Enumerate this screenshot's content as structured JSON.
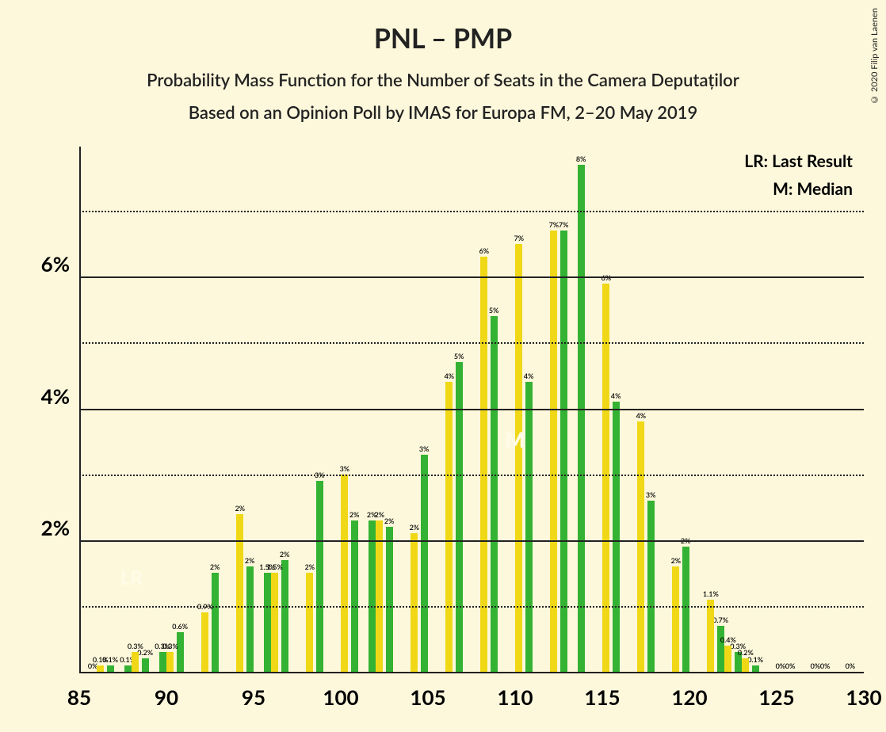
{
  "background_color": "#fdf8db",
  "title": "PNL – PMP",
  "title_fontsize": 34,
  "title_color": "#222222",
  "subtitle1": "Probability Mass Function for the Number of Seats in the Camera Deputaților",
  "subtitle2": "Based on an Opinion Poll by IMAS for Europa FM, 2–20 May 2019",
  "subtitle_fontsize": 22,
  "subtitle_color": "#222222",
  "copyright": "© 2020 Filip van Laenen",
  "legend": {
    "lr": "LR: Last Result",
    "m": "M: Median",
    "fontsize": 21
  },
  "x_axis": {
    "min": 85,
    "max": 130,
    "ticks": [
      85,
      90,
      95,
      100,
      105,
      110,
      115,
      120,
      125,
      130
    ],
    "tick_fontsize": 26
  },
  "y_axis": {
    "min": 0,
    "max": 8,
    "major_ticks": [
      2,
      4,
      6
    ],
    "minor_ticks": [
      1,
      3,
      5,
      7
    ],
    "tick_labels": [
      "2%",
      "4%",
      "6%"
    ],
    "tick_fontsize": 26,
    "major_grid_color": "#222222",
    "minor_grid_color": "#222222",
    "major_grid_width": 2,
    "minor_grid_width": 2
  },
  "series": [
    {
      "name": "green",
      "color": "#34b233",
      "offset": -0.22,
      "bar_width": 0.42,
      "data": [
        {
          "x": 86,
          "y": 0,
          "label": "0%"
        },
        {
          "x": 87,
          "y": 0.1,
          "label": "0.1%"
        },
        {
          "x": 88,
          "y": 0.1,
          "label": "0.1%"
        },
        {
          "x": 89,
          "y": 0.2,
          "label": "0.2%"
        },
        {
          "x": 90,
          "y": 0.3,
          "label": "0.3%"
        },
        {
          "x": 91,
          "y": 0.6,
          "label": "0.6%"
        },
        {
          "x": 93,
          "y": 1.5,
          "label": "2%"
        },
        {
          "x": 95,
          "y": 1.6,
          "label": "2%"
        },
        {
          "x": 96,
          "y": 1.5,
          "label": "1.5%"
        },
        {
          "x": 97,
          "y": 1.7,
          "label": "2%"
        },
        {
          "x": 99,
          "y": 2.9,
          "label": "3%"
        },
        {
          "x": 101,
          "y": 2.3,
          "label": "2%"
        },
        {
          "x": 102,
          "y": 2.3,
          "label": "2%"
        },
        {
          "x": 103,
          "y": 2.2,
          "label": "2%"
        },
        {
          "x": 105,
          "y": 3.3,
          "label": "3%"
        },
        {
          "x": 107,
          "y": 4.7,
          "label": "5%"
        },
        {
          "x": 109,
          "y": 5.4,
          "label": "5%"
        },
        {
          "x": 111,
          "y": 4.4,
          "label": "4%"
        },
        {
          "x": 113,
          "y": 6.7,
          "label": "7%"
        },
        {
          "x": 114,
          "y": 7.7,
          "label": "8%"
        },
        {
          "x": 116,
          "y": 4.1,
          "label": "4%"
        },
        {
          "x": 118,
          "y": 2.6,
          "label": "3%"
        },
        {
          "x": 120,
          "y": 1.9,
          "label": "2%"
        },
        {
          "x": 122,
          "y": 0.7,
          "label": "0.7%"
        },
        {
          "x": 123,
          "y": 0.3,
          "label": "0.3%"
        },
        {
          "x": 124,
          "y": 0.1,
          "label": "0.1%"
        },
        {
          "x": 126,
          "y": 0,
          "label": "0%"
        },
        {
          "x": 128,
          "y": 0,
          "label": "0%"
        }
      ]
    },
    {
      "name": "yellow",
      "color": "#f0d817",
      "offset": 0.22,
      "bar_width": 0.42,
      "data": [
        {
          "x": 86,
          "y": 0.1,
          "label": "0.1%"
        },
        {
          "x": 88,
          "y": 0.3,
          "label": "0.3%"
        },
        {
          "x": 90,
          "y": 0.3,
          "label": "0.3%"
        },
        {
          "x": 92,
          "y": 0.9,
          "label": "0.9%"
        },
        {
          "x": 94,
          "y": 2.4,
          "label": "2%"
        },
        {
          "x": 96,
          "y": 1.5,
          "label": "1.5%"
        },
        {
          "x": 98,
          "y": 1.5,
          "label": "2%"
        },
        {
          "x": 100,
          "y": 3.0,
          "label": "3%"
        },
        {
          "x": 102,
          "y": 2.3,
          "label": "2%"
        },
        {
          "x": 104,
          "y": 2.1,
          "label": "2%"
        },
        {
          "x": 106,
          "y": 4.4,
          "label": "4%"
        },
        {
          "x": 108,
          "y": 6.3,
          "label": "6%"
        },
        {
          "x": 110,
          "y": 6.5,
          "label": "7%"
        },
        {
          "x": 112,
          "y": 6.7,
          "label": "7%"
        },
        {
          "x": 115,
          "y": 5.9,
          "label": "6%"
        },
        {
          "x": 117,
          "y": 3.8,
          "label": "4%"
        },
        {
          "x": 119,
          "y": 1.6,
          "label": "2%"
        },
        {
          "x": 121,
          "y": 1.1,
          "label": "1.1%"
        },
        {
          "x": 122,
          "y": 0.4,
          "label": "0.4%"
        },
        {
          "x": 123,
          "y": 0.2,
          "label": "0.2%"
        },
        {
          "x": 125,
          "y": 0,
          "label": "0%"
        },
        {
          "x": 127,
          "y": 0,
          "label": "0%"
        },
        {
          "x": 129,
          "y": 0,
          "label": "0%"
        }
      ]
    }
  ],
  "markers": {
    "LR": {
      "text": "LR",
      "x": 88,
      "y_percent": 16,
      "fontsize": 24
    },
    "M": {
      "text": "M",
      "x": 110,
      "y_percent": 42,
      "fontsize": 26
    }
  }
}
